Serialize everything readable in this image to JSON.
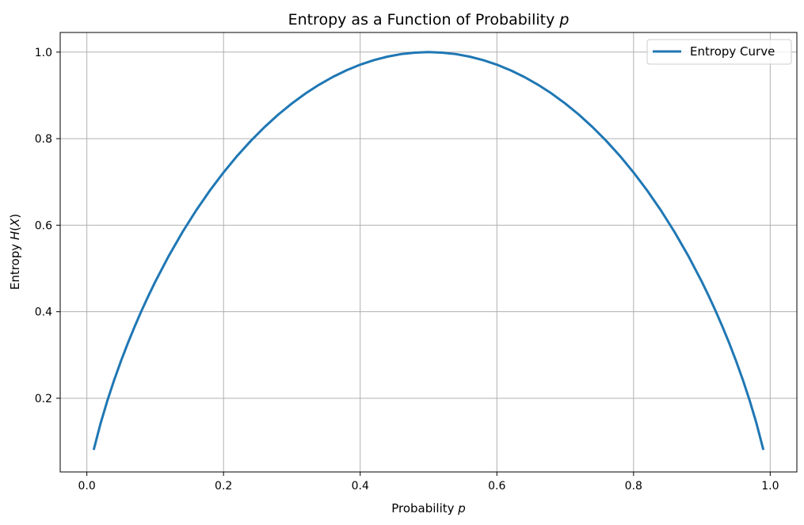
{
  "chart_data": {
    "type": "line",
    "title": "Entropy as a Function of Probability p",
    "title_parts": {
      "text": "Entropy as a Function of Probability ",
      "var": "p"
    },
    "xlabel": "Probability p",
    "xlabel_parts": {
      "text": "Probability ",
      "var": "p"
    },
    "ylabel": "Entropy H(X)",
    "ylabel_parts": {
      "text": "Entropy ",
      "var": "H",
      "open": "(",
      "arg": "X",
      "close": ")"
    },
    "xlim": [
      -0.039,
      1.039
    ],
    "ylim": [
      0.0297,
      1.0454
    ],
    "x_ticks": [
      0.0,
      0.2,
      0.4,
      0.6,
      0.8,
      1.0
    ],
    "x_tick_labels": [
      "0.0",
      "0.2",
      "0.4",
      "0.6",
      "0.8",
      "1.0"
    ],
    "y_ticks": [
      0.2,
      0.4,
      0.6,
      0.8,
      1.0
    ],
    "y_tick_labels": [
      "0.2",
      "0.4",
      "0.6",
      "0.8",
      "1.0"
    ],
    "grid": true,
    "legend_position": "top-right",
    "series": [
      {
        "name": "Entropy Curve",
        "color": "#1f77b4",
        "x": [
          0.01,
          0.02,
          0.03,
          0.04,
          0.05,
          0.06,
          0.07,
          0.08,
          0.09,
          0.1,
          0.12,
          0.14,
          0.16,
          0.18,
          0.2,
          0.22,
          0.24,
          0.26,
          0.28,
          0.3,
          0.32,
          0.34,
          0.36,
          0.38,
          0.4,
          0.42,
          0.44,
          0.46,
          0.48,
          0.5,
          0.52,
          0.54,
          0.56,
          0.58,
          0.6,
          0.62,
          0.64,
          0.66,
          0.68,
          0.7,
          0.72,
          0.74,
          0.76,
          0.78,
          0.8,
          0.82,
          0.84,
          0.86,
          0.88,
          0.9,
          0.91,
          0.92,
          0.93,
          0.94,
          0.95,
          0.96,
          0.97,
          0.98,
          0.99
        ],
        "y": [
          0.0808,
          0.1414,
          0.1944,
          0.2423,
          0.2864,
          0.3274,
          0.3659,
          0.4022,
          0.4365,
          0.469,
          0.5294,
          0.5842,
          0.6343,
          0.6801,
          0.7219,
          0.7602,
          0.795,
          0.8267,
          0.8555,
          0.8813,
          0.9044,
          0.9248,
          0.9427,
          0.958,
          0.971,
          0.9815,
          0.9896,
          0.9954,
          0.9988,
          1.0,
          0.9988,
          0.9954,
          0.9896,
          0.9815,
          0.971,
          0.958,
          0.9427,
          0.9248,
          0.9044,
          0.8813,
          0.8555,
          0.8267,
          0.795,
          0.7602,
          0.7219,
          0.6801,
          0.6343,
          0.5842,
          0.5294,
          0.469,
          0.4365,
          0.4022,
          0.3659,
          0.3274,
          0.2864,
          0.2423,
          0.1944,
          0.1414,
          0.0808
        ]
      }
    ]
  }
}
